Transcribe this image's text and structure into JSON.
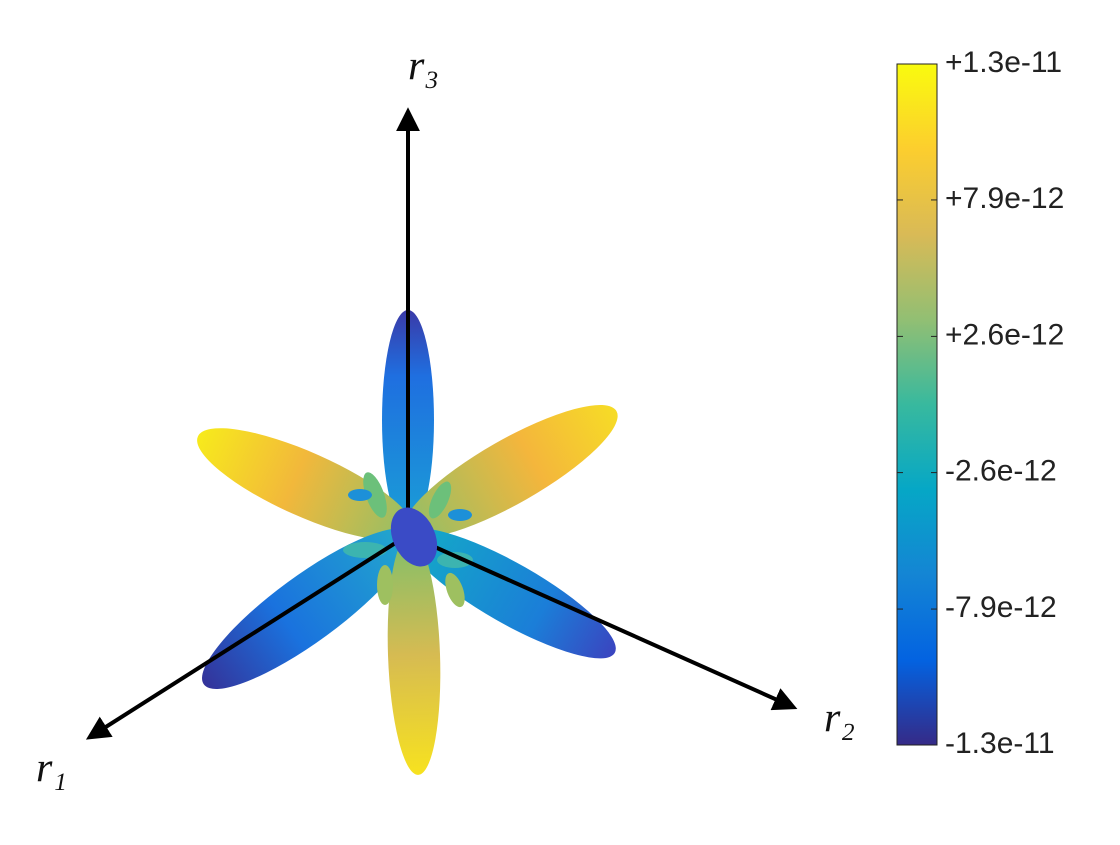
{
  "chart_data": {
    "type": "surface3d",
    "axis_labels": {
      "x": "r₁",
      "y": "r₂",
      "z": "r₃"
    },
    "colorbar": {
      "clim": [
        -1.31e-11,
        1.31e-11
      ],
      "ticks": [
        {
          "value": 1.31e-11,
          "label": "+1.3e-11"
        },
        {
          "value": 7.87e-12,
          "label": "+7.9e-12"
        },
        {
          "value": 2.62e-12,
          "label": "+2.6e-12"
        },
        {
          "value": -2.62e-12,
          "label": "-2.6e-12"
        },
        {
          "value": -7.87e-12,
          "label": "-7.9e-12"
        },
        {
          "value": -1.31e-11,
          "label": "-1.3e-11"
        }
      ],
      "colormap": [
        "#352a87",
        "#0363e1",
        "#1485d4",
        "#06a7c6",
        "#38b99e",
        "#92bf73",
        "#d9ba56",
        "#fcce2e",
        "#f9fb0e"
      ]
    }
  }
}
